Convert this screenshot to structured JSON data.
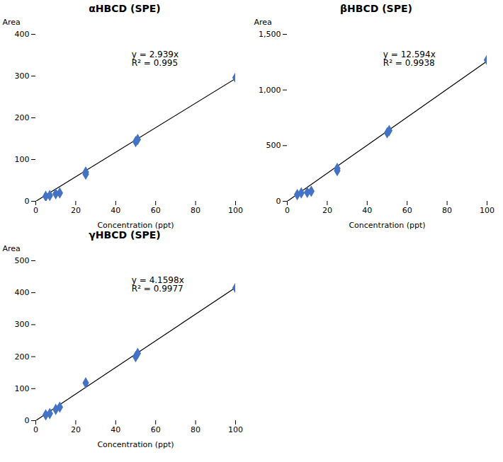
{
  "chart_data": [
    {
      "type": "scatter",
      "title": "αHBCD (SPE)",
      "xlabel": "Concentration (ppt)",
      "ylabel": "Area",
      "x": [
        5,
        7,
        10,
        12,
        25,
        25,
        50,
        51,
        100
      ],
      "values": [
        12,
        14,
        18,
        20,
        65,
        70,
        143,
        148,
        296
      ],
      "slope": 2.939,
      "annotation": "y = 2.939x\nR² = 0.995",
      "color": "#4472C4",
      "marker": "diamond",
      "xlim": [
        0,
        100
      ],
      "ylim": [
        0,
        400
      ],
      "xticks": [
        0,
        20,
        40,
        60,
        80,
        100
      ],
      "yticks": [
        0,
        100,
        200,
        300,
        400
      ]
    },
    {
      "type": "scatter",
      "title": "βHBCD (SPE)",
      "xlabel": "Concentration (ppt)",
      "ylabel": "Area",
      "x": [
        5,
        7,
        10,
        12,
        25,
        25,
        50,
        51,
        100
      ],
      "values": [
        60,
        75,
        80,
        90,
        275,
        295,
        615,
        635,
        1270
      ],
      "slope": 12.594,
      "annotation": "y = 12.594x\nR² = 0.9938",
      "color": "#4472C4",
      "marker": "diamond",
      "xlim": [
        0,
        100
      ],
      "ylim": [
        0,
        1500
      ],
      "xticks": [
        0,
        20,
        40,
        60,
        80,
        100
      ],
      "yticks": [
        0,
        500,
        1000,
        1500
      ]
    },
    {
      "type": "scatter",
      "title": "γHBCD (SPE)",
      "xlabel": "Concentration (ppt)",
      "ylabel": "Area",
      "x": [
        5,
        7,
        10,
        12,
        25,
        50,
        51,
        100
      ],
      "values": [
        18,
        22,
        35,
        42,
        118,
        200,
        210,
        415
      ],
      "slope": 4.1598,
      "annotation": "y = 4.1598x\nR² = 0.9977",
      "color": "#4472C4",
      "marker": "diamond",
      "xlim": [
        0,
        100
      ],
      "ylim": [
        0,
        500
      ],
      "xticks": [
        0,
        20,
        40,
        60,
        80,
        100
      ],
      "yticks": [
        0,
        100,
        200,
        300,
        400,
        500
      ]
    }
  ]
}
